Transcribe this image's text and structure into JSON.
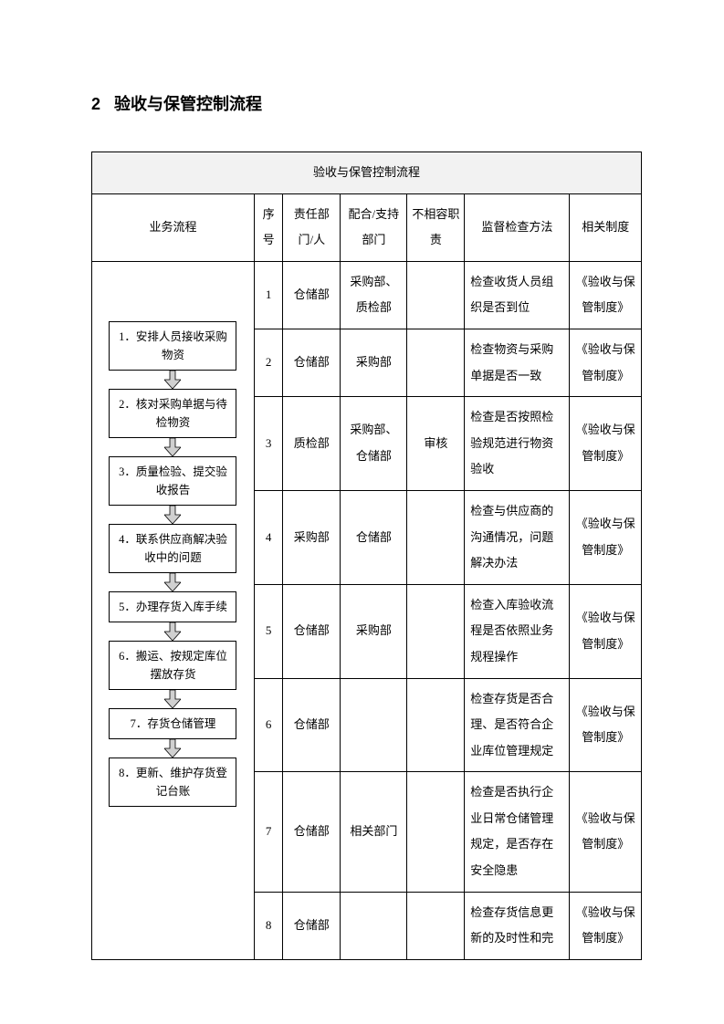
{
  "section": {
    "number": "2",
    "title": "验收与保管控制流程"
  },
  "table": {
    "main_header": "验收与保管控制流程",
    "columns": {
      "flow": "业务流程",
      "seq": "序号",
      "dept": "责任部门/人",
      "support": "配合/支持部门",
      "incompatible": "不相容职责",
      "supervise": "监督检查方法",
      "system": "相关制度"
    },
    "flow_steps": [
      "1．安排人员接收采购物资",
      "2．核对采购单据与待检物资",
      "3．质量检验、提交验收报告",
      "4．联系供应商解决验收中的问题",
      "5．办理存货入库手续",
      "6．搬运、按规定库位摆放存货",
      "7．存货仓储管理",
      "8．更新、维护存货登记台账"
    ],
    "rows": [
      {
        "seq": "1",
        "dept": "仓储部",
        "support": "采购部、质检部",
        "incompatible": "",
        "supervise": "检查收货人员组织是否到位",
        "system": "《验收与保管制度》"
      },
      {
        "seq": "2",
        "dept": "仓储部",
        "support": "采购部",
        "incompatible": "",
        "supervise": "检查物资与采购单据是否一致",
        "system": "《验收与保管制度》"
      },
      {
        "seq": "3",
        "dept": "质检部",
        "support": "采购部、仓储部",
        "incompatible": "审核",
        "supervise": "检查是否按照检验规范进行物资验收",
        "system": "《验收与保管制度》"
      },
      {
        "seq": "4",
        "dept": "采购部",
        "support": "仓储部",
        "incompatible": "",
        "supervise": "检查与供应商的沟通情况，问题解决办法",
        "system": "《验收与保管制度》"
      },
      {
        "seq": "5",
        "dept": "仓储部",
        "support": "采购部",
        "incompatible": "",
        "supervise": "检查入库验收流程是否依照业务规程操作",
        "system": "《验收与保管制度》"
      },
      {
        "seq": "6",
        "dept": "仓储部",
        "support": "",
        "incompatible": "",
        "supervise": "检查存货是否合理、是否符合企业库位管理规定",
        "system": "《验收与保管制度》"
      },
      {
        "seq": "7",
        "dept": "仓储部",
        "support": "相关部门",
        "incompatible": "",
        "supervise": "检查是否执行企业日常仓储管理规定，是否存在安全隐患",
        "system": "《验收与保管制度》"
      },
      {
        "seq": "8",
        "dept": "仓储部",
        "support": "",
        "incompatible": "",
        "supervise": "检查存货信息更新的及时性和完",
        "system": "《验收与保管制度》"
      }
    ]
  },
  "style": {
    "arrow_fill": "#d0d0d0",
    "arrow_stroke": "#000000"
  }
}
